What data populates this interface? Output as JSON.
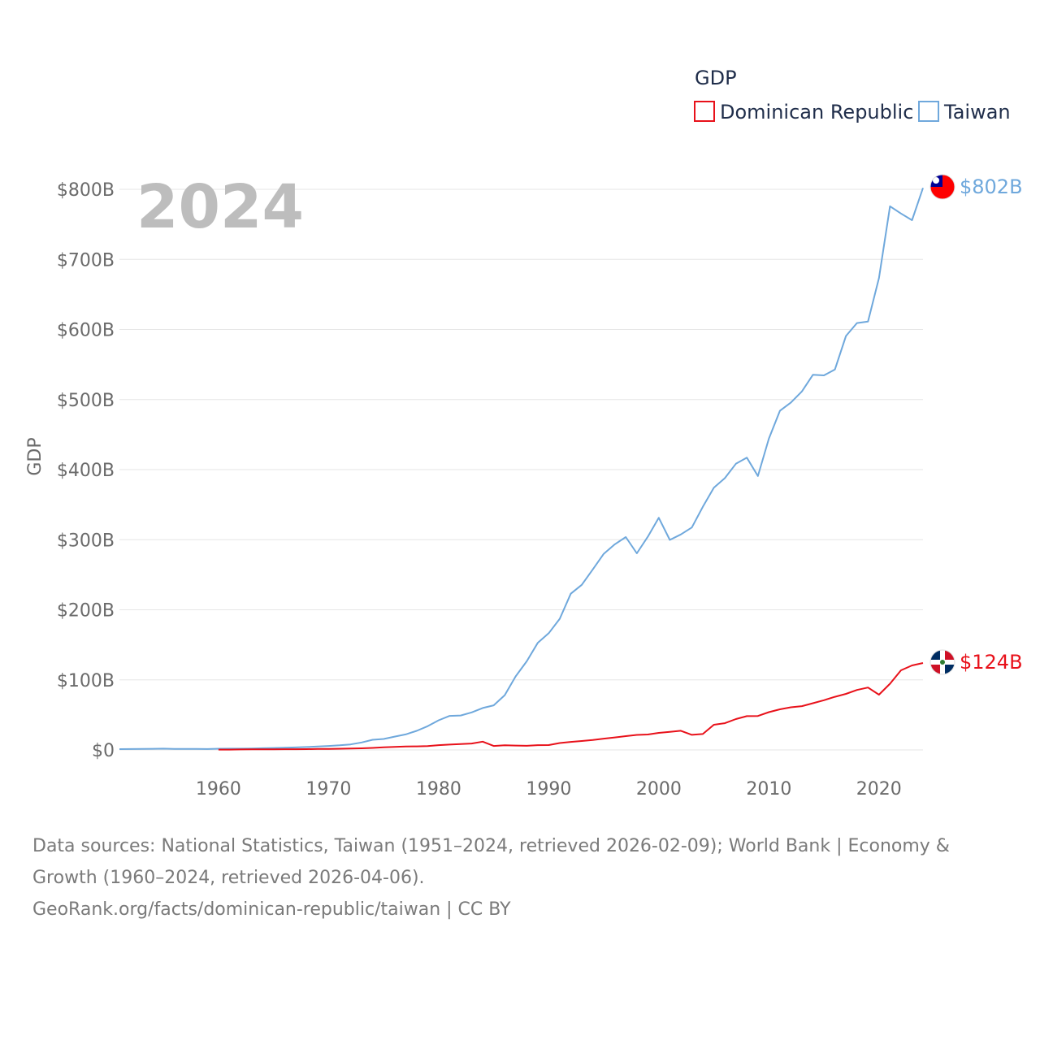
{
  "chart_data": {
    "type": "line",
    "title": "GDP",
    "year_label": "2024",
    "ylabel": "GDP",
    "xlabel": "",
    "xlim": [
      1951,
      2024
    ],
    "ylim": [
      0,
      800
    ],
    "x_ticks": [
      1960,
      1970,
      1980,
      1990,
      2000,
      2010,
      2020
    ],
    "y_ticks": [
      {
        "value": 0,
        "label": "$0"
      },
      {
        "value": 100,
        "label": "$100B"
      },
      {
        "value": 200,
        "label": "$200B"
      },
      {
        "value": 300,
        "label": "$300B"
      },
      {
        "value": 400,
        "label": "$400B"
      },
      {
        "value": 500,
        "label": "$500B"
      },
      {
        "value": 600,
        "label": "$600B"
      },
      {
        "value": 700,
        "label": "$700B"
      },
      {
        "value": 800,
        "label": "$800B"
      }
    ],
    "legend_position": "top-right",
    "series": [
      {
        "name": "Dominican Republic",
        "color": "#e8111a",
        "end_label": "$124B",
        "x": [
          1960,
          1961,
          1962,
          1963,
          1964,
          1965,
          1966,
          1967,
          1968,
          1969,
          1970,
          1971,
          1972,
          1973,
          1974,
          1975,
          1976,
          1977,
          1978,
          1979,
          1980,
          1981,
          1982,
          1983,
          1984,
          1985,
          1986,
          1987,
          1988,
          1989,
          1990,
          1991,
          1992,
          1993,
          1994,
          1995,
          1996,
          1997,
          1998,
          1999,
          2000,
          2001,
          2002,
          2003,
          2004,
          2005,
          2006,
          2007,
          2008,
          2009,
          2010,
          2011,
          2012,
          2013,
          2014,
          2015,
          2016,
          2017,
          2018,
          2019,
          2020,
          2021,
          2022,
          2023,
          2024
        ],
        "values": [
          0.5,
          0.5,
          0.7,
          0.8,
          0.9,
          0.9,
          1.0,
          1.1,
          1.2,
          1.4,
          1.5,
          1.7,
          2.0,
          2.3,
          2.9,
          3.7,
          4.3,
          4.9,
          5.1,
          5.6,
          6.8,
          7.6,
          8.4,
          9.2,
          11.8,
          5.7,
          6.6,
          6.3,
          5.9,
          6.8,
          6.9,
          9.8,
          11.5,
          12.8,
          14.3,
          16.1,
          17.9,
          19.7,
          21.5,
          22.0,
          24.3,
          25.8,
          27.4,
          21.6,
          22.7,
          35.9,
          38.1,
          44.1,
          48.2,
          48.5,
          53.9,
          58.0,
          60.9,
          62.5,
          66.7,
          70.9,
          75.8,
          80.0,
          85.6,
          89.0,
          78.8,
          94.5,
          113.6,
          120.6,
          124.0
        ]
      },
      {
        "name": "Taiwan",
        "color": "#6fa8dc",
        "end_label": "$802B",
        "x": [
          1951,
          1952,
          1953,
          1954,
          1955,
          1956,
          1957,
          1958,
          1959,
          1960,
          1961,
          1962,
          1963,
          1964,
          1965,
          1966,
          1967,
          1968,
          1969,
          1970,
          1971,
          1972,
          1973,
          1974,
          1975,
          1976,
          1977,
          1978,
          1979,
          1980,
          1981,
          1982,
          1983,
          1984,
          1985,
          1986,
          1987,
          1988,
          1989,
          1990,
          1991,
          1992,
          1993,
          1994,
          1995,
          1996,
          1997,
          1998,
          1999,
          2000,
          2001,
          2002,
          2003,
          2004,
          2005,
          2006,
          2007,
          2008,
          2009,
          2010,
          2011,
          2012,
          2013,
          2014,
          2015,
          2016,
          2017,
          2018,
          2019,
          2020,
          2021,
          2022,
          2023,
          2024
        ],
        "values": [
          1.2,
          1.3,
          1.5,
          1.6,
          1.8,
          1.4,
          1.5,
          1.5,
          1.3,
          1.7,
          1.8,
          1.9,
          2.1,
          2.4,
          2.8,
          3.1,
          3.6,
          4.2,
          4.9,
          5.7,
          6.6,
          7.9,
          10.7,
          14.5,
          15.7,
          19.0,
          22.2,
          27.3,
          33.9,
          42.3,
          48.6,
          49.2,
          53.6,
          59.8,
          63.6,
          78.2,
          105.0,
          126.5,
          152.7,
          166.6,
          187.1,
          222.9,
          235.6,
          257.6,
          279.9,
          293.5,
          303.8,
          280.6,
          304.2,
          331.3,
          299.7,
          307.5,
          317.4,
          346.9,
          374.1,
          387.8,
          408.3,
          417.0,
          390.8,
          444.2,
          483.9,
          495.8,
          511.6,
          535.3,
          534.5,
          543.0,
          590.7,
          609.2,
          611.3,
          673.3,
          775.8,
          765.5,
          755.9,
          802.0
        ]
      }
    ]
  },
  "source": {
    "line1": "Data sources: National Statistics, Taiwan (1951–2024, retrieved 2026-02-09); World Bank | Economy &",
    "line2": "Growth (1960–2024, retrieved 2026-04-06).",
    "line3": "GeoRank.org/facts/dominican-republic/taiwan | CC BY"
  },
  "flags": {
    "dominican_republic": "dominican-republic-flag-icon",
    "taiwan": "taiwan-flag-icon"
  }
}
